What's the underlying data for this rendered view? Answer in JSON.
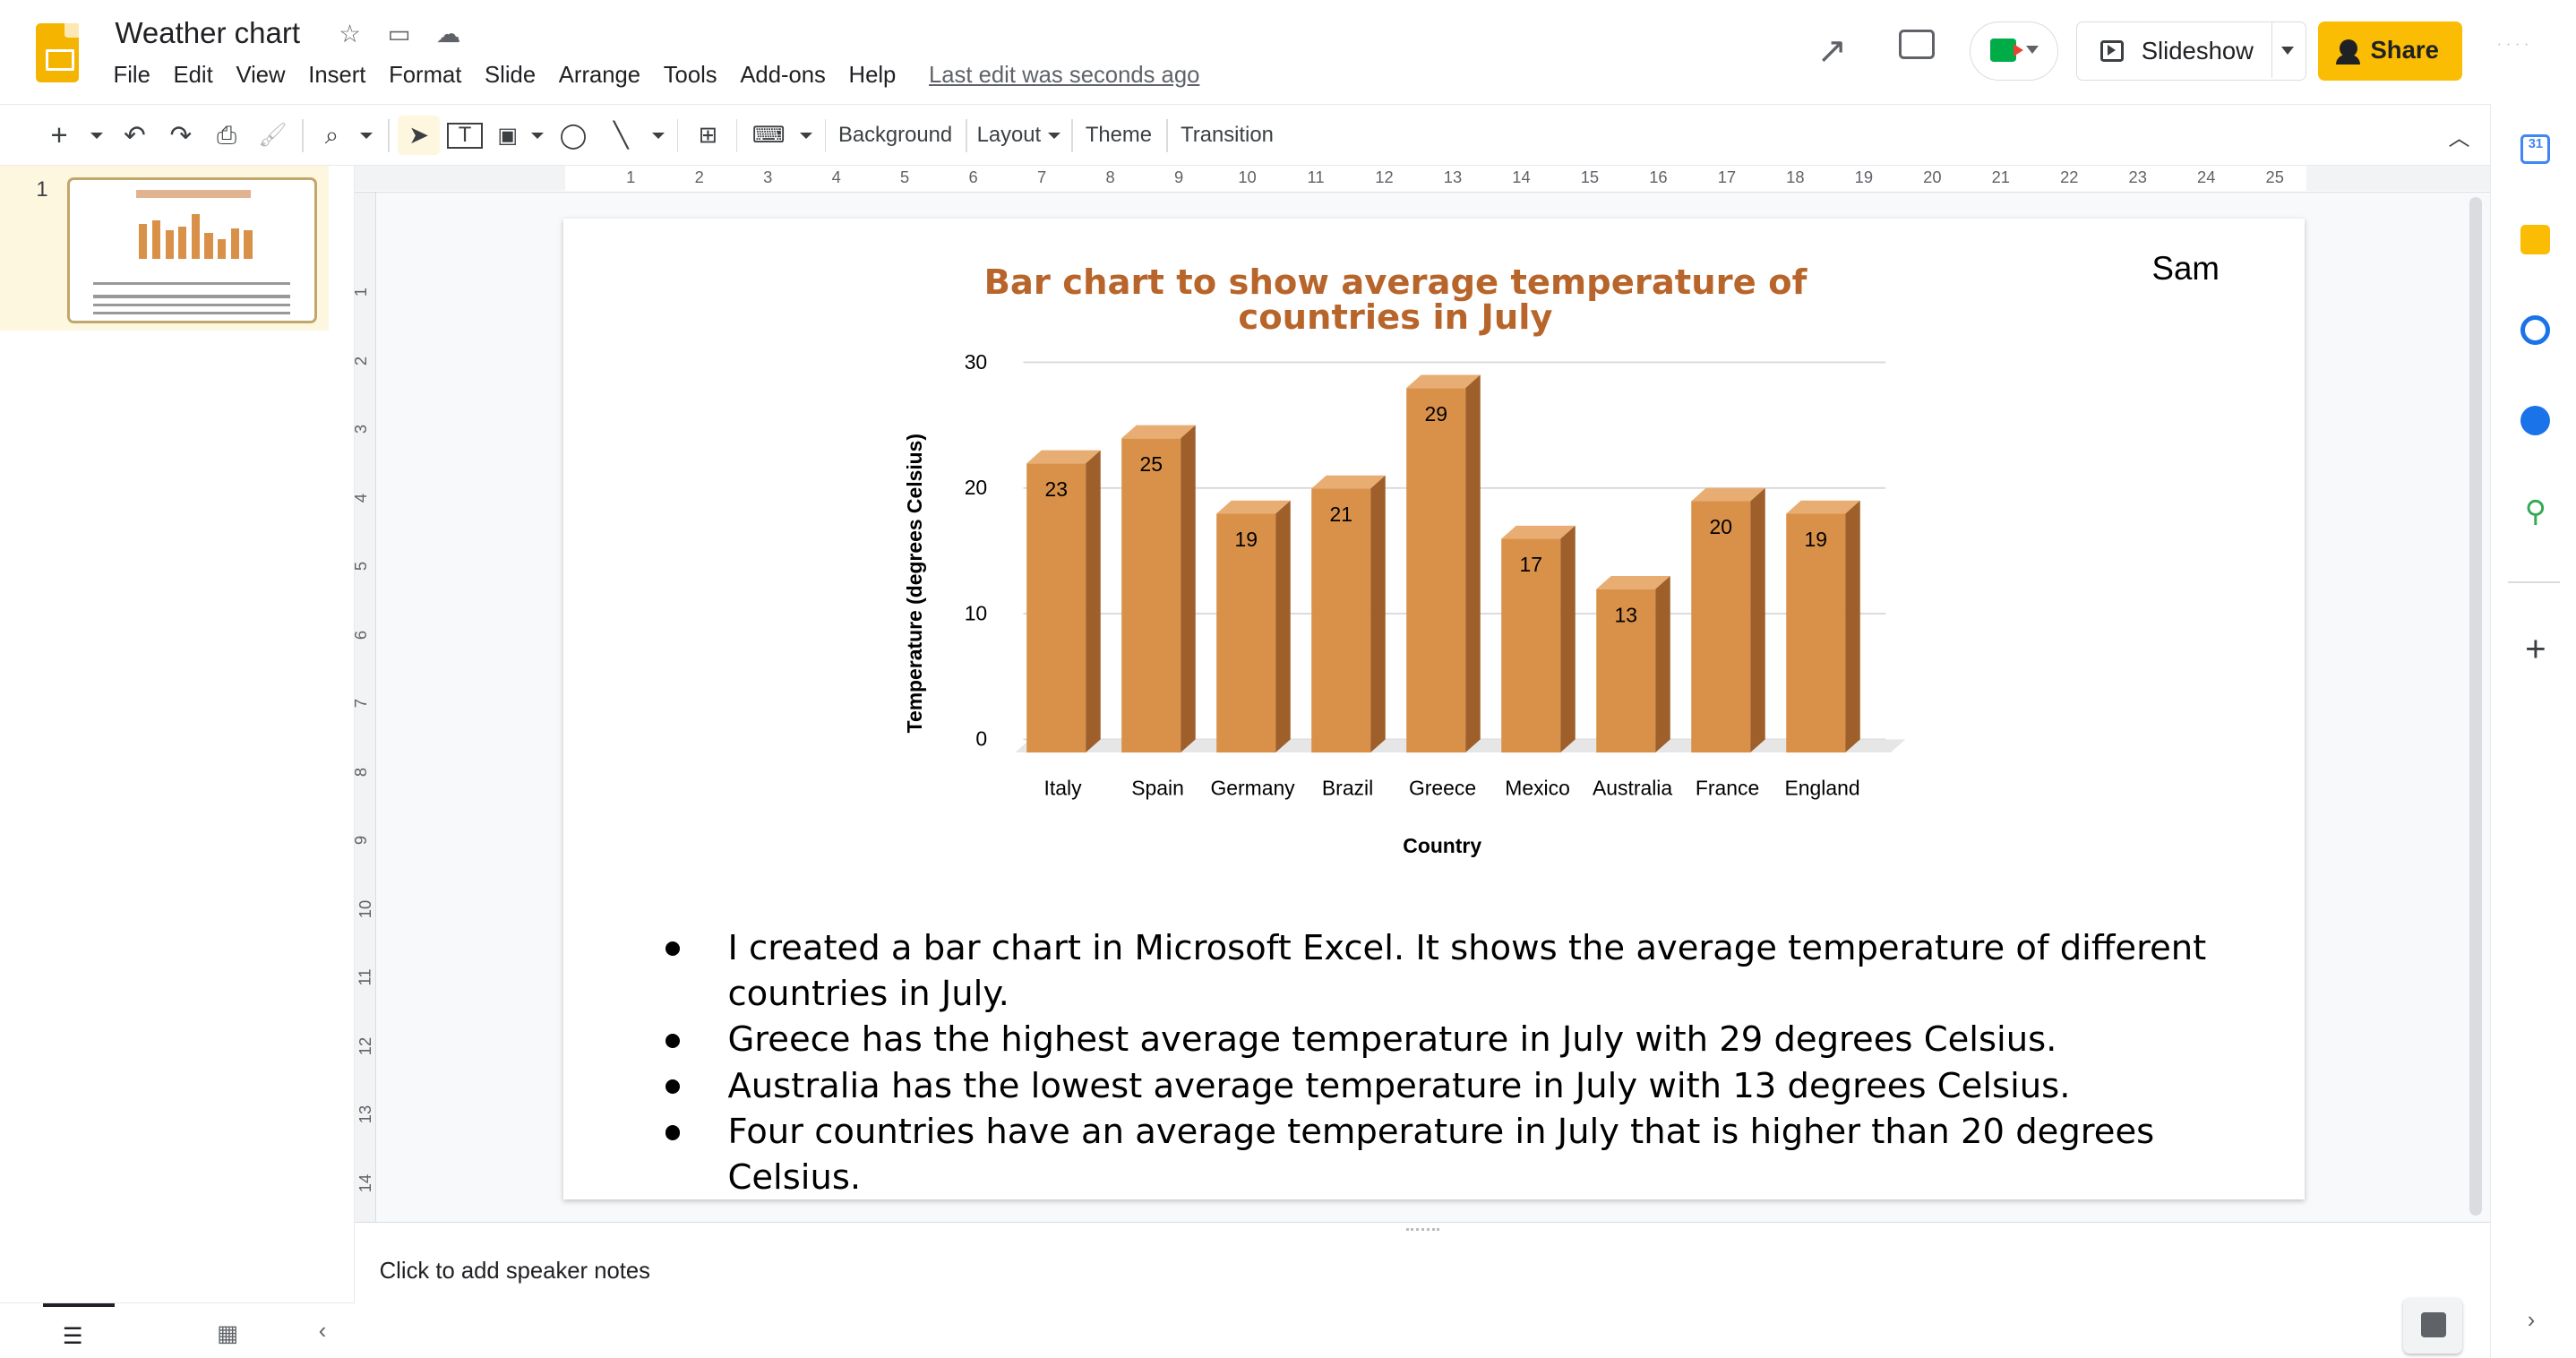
{
  "app": {
    "title": "Weather chart",
    "last_edit": "Last edit was seconds ago",
    "slideshow_label": "Slideshow",
    "share_label": "Share"
  },
  "menu": [
    "File",
    "Edit",
    "View",
    "Insert",
    "Format",
    "Slide",
    "Arrange",
    "Tools",
    "Add-ons",
    "Help"
  ],
  "toolbar": {
    "background": "Background",
    "layout": "Layout",
    "theme": "Theme",
    "transition": "Transition"
  },
  "filmstrip": {
    "slide_number": "1"
  },
  "slide": {
    "author": "Sam",
    "bullets": [
      "I created a bar chart in Microsoft Excel. It shows the average temperature of different countries in July.",
      "Greece has the highest average temperature in July with 29 degrees Celsius.",
      "Australia has the lowest average temperature in July with 13 degrees Celsius.",
      "Four countries have an average temperature in July that is higher than 20 degrees Celsius."
    ]
  },
  "chart_data": {
    "type": "bar",
    "title": "Bar chart to show average temperature of countries in July",
    "xlabel": "Country",
    "ylabel": "Temperature (degrees Celsius)",
    "categories": [
      "Italy",
      "Spain",
      "Germany",
      "Brazil",
      "Greece",
      "Mexico",
      "Australia",
      "France",
      "England"
    ],
    "values": [
      23,
      25,
      19,
      21,
      29,
      17,
      13,
      20,
      19
    ],
    "yticks": [
      0,
      10,
      20,
      30
    ],
    "ylim": [
      0,
      30
    ],
    "grid": true,
    "bar_color": "#d9914a",
    "title_color": "#b8652b"
  },
  "notes": {
    "placeholder": "Click to add speaker notes"
  },
  "ruler": {
    "h": [
      1,
      2,
      3,
      4,
      5,
      6,
      7,
      8,
      9,
      10,
      11,
      12,
      13,
      14,
      15,
      16,
      17,
      18,
      19,
      20,
      21,
      22,
      23,
      24,
      25
    ],
    "v": [
      1,
      2,
      3,
      4,
      5,
      6,
      7,
      8,
      9,
      10,
      11,
      12,
      13,
      14
    ]
  },
  "colors": {
    "accent": "#fbbc04",
    "brand": "#f4b400"
  }
}
